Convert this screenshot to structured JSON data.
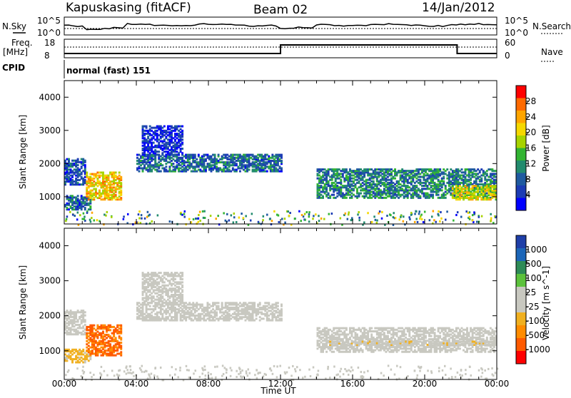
{
  "header": {
    "station": "Kapuskasing (fitACF)",
    "beam": "Beam 02",
    "date": "14/Jan/2012"
  },
  "top_panel": {
    "left_label": "N.Sky",
    "right_label": "N.Search",
    "left_ticks": [
      "10^5",
      "10^0"
    ],
    "right_ticks": [
      "10^5",
      "10^0"
    ]
  },
  "freq_panel": {
    "left_label_line1": "Freq.",
    "left_label_line2": "[MHz]",
    "left_ticks": [
      "18",
      "8"
    ],
    "right_label": "Nave",
    "right_ticks": [
      "60",
      "0"
    ]
  },
  "cpid": {
    "label": "CPID",
    "value": "normal (fast) 151"
  },
  "colorbars": {
    "power": {
      "title": "Power [dB]",
      "ticks": [
        "28",
        "24",
        "20",
        "16",
        "12",
        "8",
        "4"
      ],
      "colors": [
        "#ff0000",
        "#ff6a00",
        "#ffa500",
        "#f5d800",
        "#a7d300",
        "#32b432",
        "#228b6e",
        "#1f5aa0",
        "#1c3cb4",
        "#0000ff"
      ]
    },
    "velocity": {
      "title": "Velocity [m s^-1]",
      "ticks": [
        "1000",
        "500",
        "100",
        "25",
        "-25",
        "-100",
        "-500",
        "-1000"
      ],
      "colors": [
        "#1f3fa8",
        "#1c66b8",
        "#2e8b57",
        "#5cc23c",
        "#c8c8c0",
        "#c8c8c0",
        "#f0b020",
        "#ff8c00",
        "#ff5a00",
        "#ff0000"
      ]
    }
  },
  "axes": {
    "ylabel": "Slant Range [km]",
    "yticks": [
      "4000",
      "3000",
      "2000",
      "1000"
    ],
    "xticks": [
      "00:00",
      "04:00",
      "08:00",
      "12:00",
      "16:00",
      "20:00",
      "00:00"
    ],
    "xlabel": "Time UT"
  },
  "chart_data": [
    {
      "type": "heatmap",
      "title": "",
      "quantity": "Power [dB]",
      "xlabel": "Time UT",
      "ylabel": "Slant Range [km]",
      "xlim": [
        "00:00",
        "24:00"
      ],
      "ylim": [
        180,
        4500
      ],
      "scale": [
        4,
        30
      ],
      "echo_regions": [
        {
          "t_start": 0.0,
          "t_end": 1.2,
          "range_min": 1400,
          "range_max": 2200,
          "power": 8
        },
        {
          "t_start": 0.0,
          "t_end": 1.5,
          "range_min": 650,
          "range_max": 1100,
          "power": 10
        },
        {
          "t_start": 1.2,
          "t_end": 3.2,
          "range_min": 950,
          "range_max": 1800,
          "power": 22
        },
        {
          "t_start": 4.0,
          "t_end": 12.0,
          "range_min": 1800,
          "range_max": 2300,
          "power": 10
        },
        {
          "t_start": 4.3,
          "t_end": 6.5,
          "range_min": 2300,
          "range_max": 3200,
          "power": 6
        },
        {
          "t_start": 14.0,
          "t_end": 24.0,
          "range_min": 1000,
          "range_max": 1900,
          "power": 12
        },
        {
          "t_start": 21.5,
          "t_end": 24.0,
          "range_min": 950,
          "range_max": 1400,
          "power": 20
        }
      ]
    },
    {
      "type": "heatmap",
      "title": "",
      "quantity": "Velocity [m s^-1]",
      "xlabel": "Time UT",
      "ylabel": "Slant Range [km]",
      "xlim": [
        "00:00",
        "24:00"
      ],
      "ylim": [
        180,
        4500
      ],
      "scale": [
        -1000,
        1000
      ],
      "echo_regions": [
        {
          "t_start": 0.0,
          "t_end": 1.2,
          "range_min": 1500,
          "range_max": 2200,
          "velocity": 0
        },
        {
          "t_start": 0.0,
          "t_end": 1.5,
          "range_min": 700,
          "range_max": 1100,
          "velocity": -300
        },
        {
          "t_start": 1.2,
          "t_end": 3.2,
          "range_min": 900,
          "range_max": 1800,
          "velocity": -700
        },
        {
          "t_start": 4.0,
          "t_end": 12.0,
          "range_min": 1900,
          "range_max": 2400,
          "velocity": 0
        },
        {
          "t_start": 4.3,
          "t_end": 6.5,
          "range_min": 2400,
          "range_max": 3300,
          "velocity": 0
        },
        {
          "t_start": 14.0,
          "t_end": 24.0,
          "range_min": 1000,
          "range_max": 1700,
          "velocity": 0
        },
        {
          "t_start": 14.5,
          "t_end": 24.0,
          "range_min": 1200,
          "range_max": 1300,
          "velocity": -150
        }
      ]
    }
  ]
}
